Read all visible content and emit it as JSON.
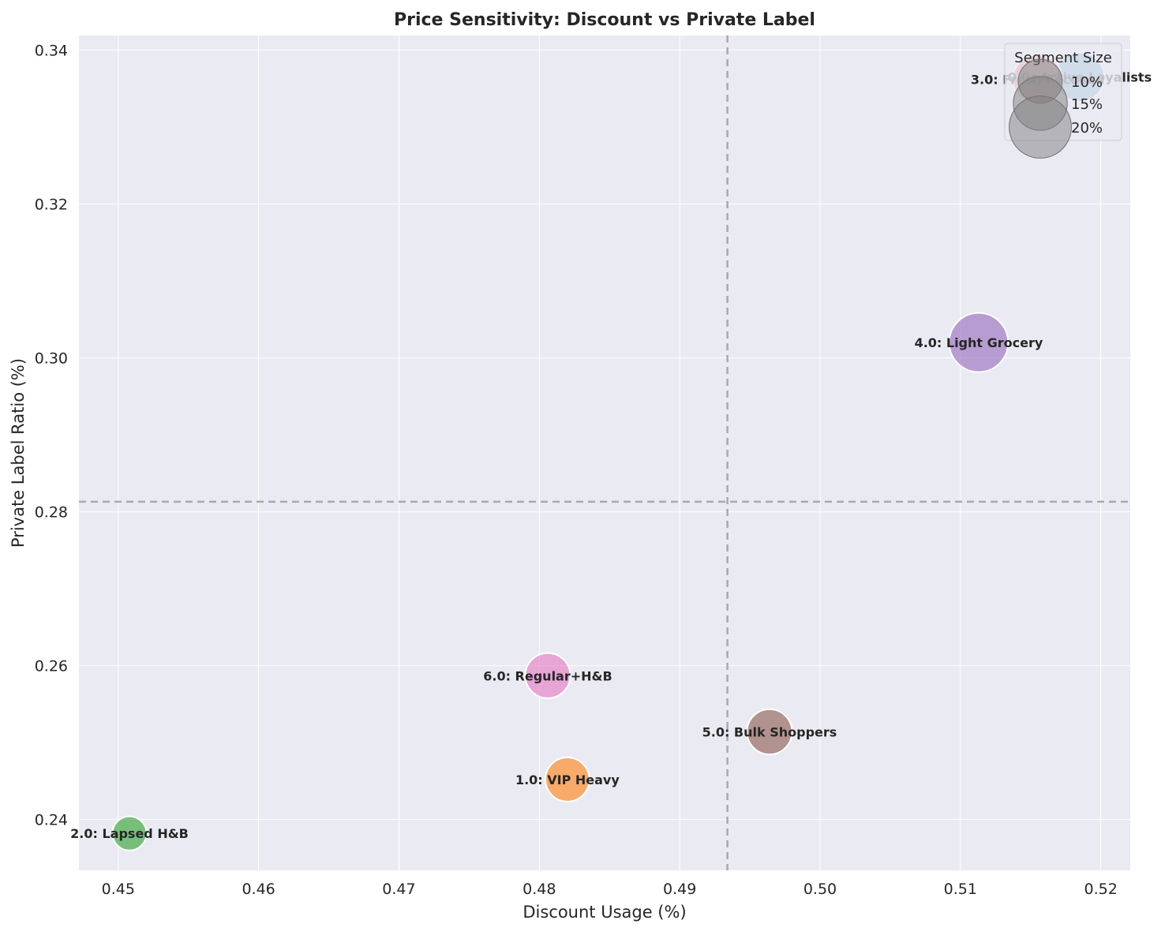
{
  "chart_data": {
    "type": "scatter",
    "title": "Price Sensitivity: Discount vs Private Label",
    "xlabel": "Discount Usage (%)",
    "ylabel": "Private Label Ratio (%)",
    "xlim": [
      0.4472,
      0.5221
    ],
    "ylim": [
      0.2334,
      0.3419
    ],
    "xticks": [
      "0.45",
      "0.46",
      "0.47",
      "0.48",
      "0.49",
      "0.50",
      "0.51",
      "0.52"
    ],
    "yticks": [
      "0.24",
      "0.26",
      "0.28",
      "0.30",
      "0.32",
      "0.34"
    ],
    "grid": true,
    "reference_lines": {
      "x_mean": 0.4934,
      "y_mean": 0.2813
    },
    "points": [
      {
        "label": "0.0: Active Loyalists",
        "x": 0.5185,
        "y": 0.3365,
        "size": 12.5,
        "color": "#1f77b4"
      },
      {
        "label": "1.0: VIP Heavy",
        "x": 0.482,
        "y": 0.2452,
        "size": 10.0,
        "color": "#ff7f0e"
      },
      {
        "label": "2.0: Lapsed H&B",
        "x": 0.4508,
        "y": 0.2382,
        "size": 6.0,
        "color": "#2ca02c"
      },
      {
        "label": "3.0: Fresh Focused",
        "x": 0.5155,
        "y": 0.3362,
        "size": 12.5,
        "color": "#d62728"
      },
      {
        "label": "4.0: Light Grocery",
        "x": 0.5113,
        "y": 0.302,
        "size": 18.0,
        "color": "#9467bd"
      },
      {
        "label": "5.0: Bulk Shoppers",
        "x": 0.4964,
        "y": 0.2514,
        "size": 10.5,
        "color": "#8c564b"
      },
      {
        "label": "6.0: Regular+H&B",
        "x": 0.4806,
        "y": 0.2587,
        "size": 10.5,
        "color": "#e377c2"
      }
    ],
    "legend": {
      "title": "Segment Size",
      "position": "top-right",
      "entries": [
        {
          "label": "10%",
          "size": 10
        },
        {
          "label": "15%",
          "size": 15
        },
        {
          "label": "20%",
          "size": 20
        }
      ]
    }
  }
}
